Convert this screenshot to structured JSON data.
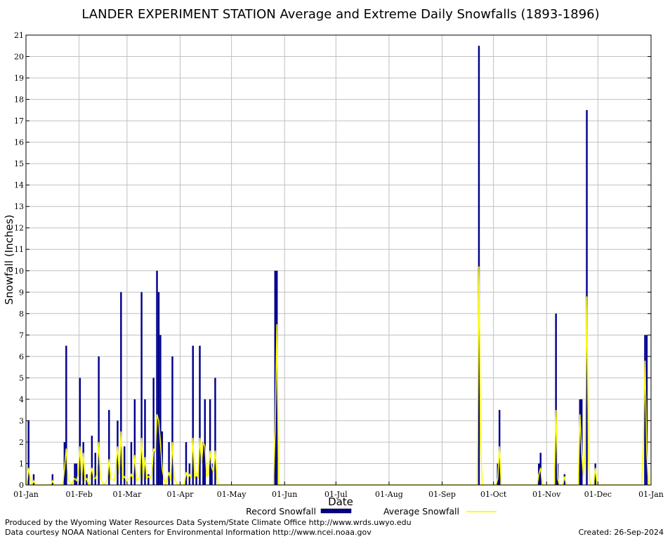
{
  "chart_data": {
    "type": "bar",
    "title": "LANDER EXPERIMENT STATION Average and Extreme Daily Snowfalls (1893-1896)",
    "xlabel": "Date",
    "ylabel": "Snowfall (Inches)",
    "ylim": [
      0,
      21
    ],
    "yticks": [
      "0",
      "1",
      "2",
      "3",
      "4",
      "5",
      "6",
      "7",
      "8",
      "9",
      "10",
      "11",
      "12",
      "13",
      "14",
      "15",
      "16",
      "17",
      "18",
      "19",
      "20",
      "21"
    ],
    "xticks": [
      "01-Jan",
      "01-Feb",
      "01-Mar",
      "01-Apr",
      "01-May",
      "01-Jun",
      "01-Jul",
      "01-Aug",
      "01-Sep",
      "01-Oct",
      "01-Nov",
      "01-Dec",
      "01-Jan"
    ],
    "grid": true,
    "legend_position": "bottom",
    "colors": {
      "record": "#00008b",
      "average": "#ffff00",
      "grid": "#c0c0c0"
    },
    "series": [
      {
        "name": "Record Snowfall",
        "points": [
          [
            1,
            3
          ],
          [
            4,
            0.5
          ],
          [
            15,
            0.5
          ],
          [
            22,
            2
          ],
          [
            23,
            6.5
          ],
          [
            28,
            1
          ],
          [
            29,
            1
          ],
          [
            31,
            5
          ],
          [
            33,
            2
          ],
          [
            35,
            0.5
          ],
          [
            38,
            2.3
          ],
          [
            40,
            1.5
          ],
          [
            42,
            6
          ],
          [
            48,
            3.5
          ],
          [
            53,
            3
          ],
          [
            55,
            9
          ],
          [
            57,
            1.8
          ],
          [
            61,
            2
          ],
          [
            63,
            4
          ],
          [
            67,
            9
          ],
          [
            69,
            4
          ],
          [
            71,
            0.5
          ],
          [
            74,
            5
          ],
          [
            76,
            10
          ],
          [
            77,
            9
          ],
          [
            78,
            7
          ],
          [
            79,
            2.5
          ],
          [
            83,
            2
          ],
          [
            85,
            6
          ],
          [
            93,
            2
          ],
          [
            95,
            1
          ],
          [
            97,
            6.5
          ],
          [
            99,
            0.4
          ],
          [
            101,
            6.5
          ],
          [
            103,
            2
          ],
          [
            104,
            4
          ],
          [
            107,
            4
          ],
          [
            108,
            1
          ],
          [
            110,
            5
          ],
          [
            145,
            10
          ],
          [
            146,
            10
          ],
          [
            264,
            20.5
          ],
          [
            275,
            1
          ],
          [
            276,
            3.5
          ],
          [
            299,
            1
          ],
          [
            300,
            1.5
          ],
          [
            309,
            8
          ],
          [
            310,
            1
          ],
          [
            314,
            0.5
          ],
          [
            323,
            4
          ],
          [
            324,
            4
          ],
          [
            327,
            17.5
          ],
          [
            332,
            1
          ],
          [
            361,
            7
          ],
          [
            362,
            7
          ]
        ]
      },
      {
        "name": "Average Snowfall",
        "points": [
          [
            0,
            0
          ],
          [
            1,
            0.8
          ],
          [
            2,
            0.3
          ],
          [
            3,
            0
          ],
          [
            4,
            0.2
          ],
          [
            5,
            0
          ],
          [
            14,
            0
          ],
          [
            15,
            0.2
          ],
          [
            16,
            0
          ],
          [
            21,
            0
          ],
          [
            22,
            0.8
          ],
          [
            23,
            1.7
          ],
          [
            24,
            0.3
          ],
          [
            26,
            0
          ],
          [
            27,
            0.2
          ],
          [
            28,
            0.3
          ],
          [
            29,
            0.2
          ],
          [
            30,
            0.5
          ],
          [
            31,
            1.8
          ],
          [
            32,
            0.2
          ],
          [
            33,
            1.5
          ],
          [
            34,
            0.2
          ],
          [
            35,
            0.3
          ],
          [
            36,
            0
          ],
          [
            38,
            0.8
          ],
          [
            39,
            0.3
          ],
          [
            40,
            0.3
          ],
          [
            41,
            0.5
          ],
          [
            42,
            2
          ],
          [
            43,
            0.3
          ],
          [
            45,
            0
          ],
          [
            47,
            0.2
          ],
          [
            48,
            1.2
          ],
          [
            49,
            0.3
          ],
          [
            51,
            0.2
          ],
          [
            52,
            0.8
          ],
          [
            53,
            1.8
          ],
          [
            54,
            0.5
          ],
          [
            55,
            2.5
          ],
          [
            56,
            0.3
          ],
          [
            57,
            0.4
          ],
          [
            58,
            0.2
          ],
          [
            60,
            0.3
          ],
          [
            61,
            0.5
          ],
          [
            62,
            0.3
          ],
          [
            63,
            1.4
          ],
          [
            64,
            0.2
          ],
          [
            66,
            0.4
          ],
          [
            67,
            2.2
          ],
          [
            68,
            0.2
          ],
          [
            69,
            1.3
          ],
          [
            70,
            0.3
          ],
          [
            71,
            0.4
          ],
          [
            72,
            0.3
          ],
          [
            73,
            0.5
          ],
          [
            74,
            1.7
          ],
          [
            75,
            1.5
          ],
          [
            76,
            3.3
          ],
          [
            77,
            3
          ],
          [
            78,
            2
          ],
          [
            79,
            0.8
          ],
          [
            80,
            0.3
          ],
          [
            81,
            0
          ],
          [
            82,
            0.3
          ],
          [
            83,
            0.6
          ],
          [
            84,
            0.2
          ],
          [
            85,
            2
          ],
          [
            86,
            0.3
          ],
          [
            88,
            0
          ],
          [
            92,
            0
          ],
          [
            93,
            0.6
          ],
          [
            94,
            0.3
          ],
          [
            95,
            0.5
          ],
          [
            96,
            0.3
          ],
          [
            97,
            2.2
          ],
          [
            98,
            0.3
          ],
          [
            99,
            0.6
          ],
          [
            100,
            0.3
          ],
          [
            101,
            2.2
          ],
          [
            102,
            1
          ],
          [
            103,
            2
          ],
          [
            104,
            1.8
          ],
          [
            105,
            0.4
          ],
          [
            106,
            0.5
          ],
          [
            107,
            1.6
          ],
          [
            108,
            0.8
          ],
          [
            109,
            0.6
          ],
          [
            110,
            1.6
          ],
          [
            111,
            0.3
          ],
          [
            112,
            0
          ],
          [
            144,
            0
          ],
          [
            145,
            2.5
          ],
          [
            146,
            7.5
          ],
          [
            147,
            0
          ],
          [
            263,
            0
          ],
          [
            264,
            10.2
          ],
          [
            265,
            2
          ],
          [
            266,
            0
          ],
          [
            274,
            0
          ],
          [
            275,
            0.3
          ],
          [
            276,
            1.8
          ],
          [
            277,
            0
          ],
          [
            298,
            0
          ],
          [
            299,
            0.5
          ],
          [
            300,
            0.8
          ],
          [
            301,
            0
          ],
          [
            308,
            0
          ],
          [
            309,
            3.5
          ],
          [
            310,
            0.3
          ],
          [
            311,
            0
          ],
          [
            313,
            0
          ],
          [
            314,
            0.4
          ],
          [
            315,
            0
          ],
          [
            322,
            0
          ],
          [
            323,
            3.3
          ],
          [
            324,
            1.5
          ],
          [
            325,
            0.4
          ],
          [
            326,
            1.6
          ],
          [
            327,
            8.8
          ],
          [
            328,
            1
          ],
          [
            329,
            0
          ],
          [
            331,
            0
          ],
          [
            332,
            0.8
          ],
          [
            333,
            0
          ],
          [
            359,
            0
          ],
          [
            360,
            2
          ],
          [
            361,
            5.8
          ],
          [
            362,
            1.5
          ],
          [
            363,
            0
          ],
          [
            365,
            0
          ]
        ]
      }
    ]
  },
  "footer": {
    "line1": "Produced by the Wyoming Water Resources Data System/State Climate Office http://www.wrds.uwyo.edu",
    "line2": "Data courtesy NOAA National Centers for Environmental Information http://www.ncei.noaa.gov",
    "created": "Created: 26-Sep-2024"
  }
}
